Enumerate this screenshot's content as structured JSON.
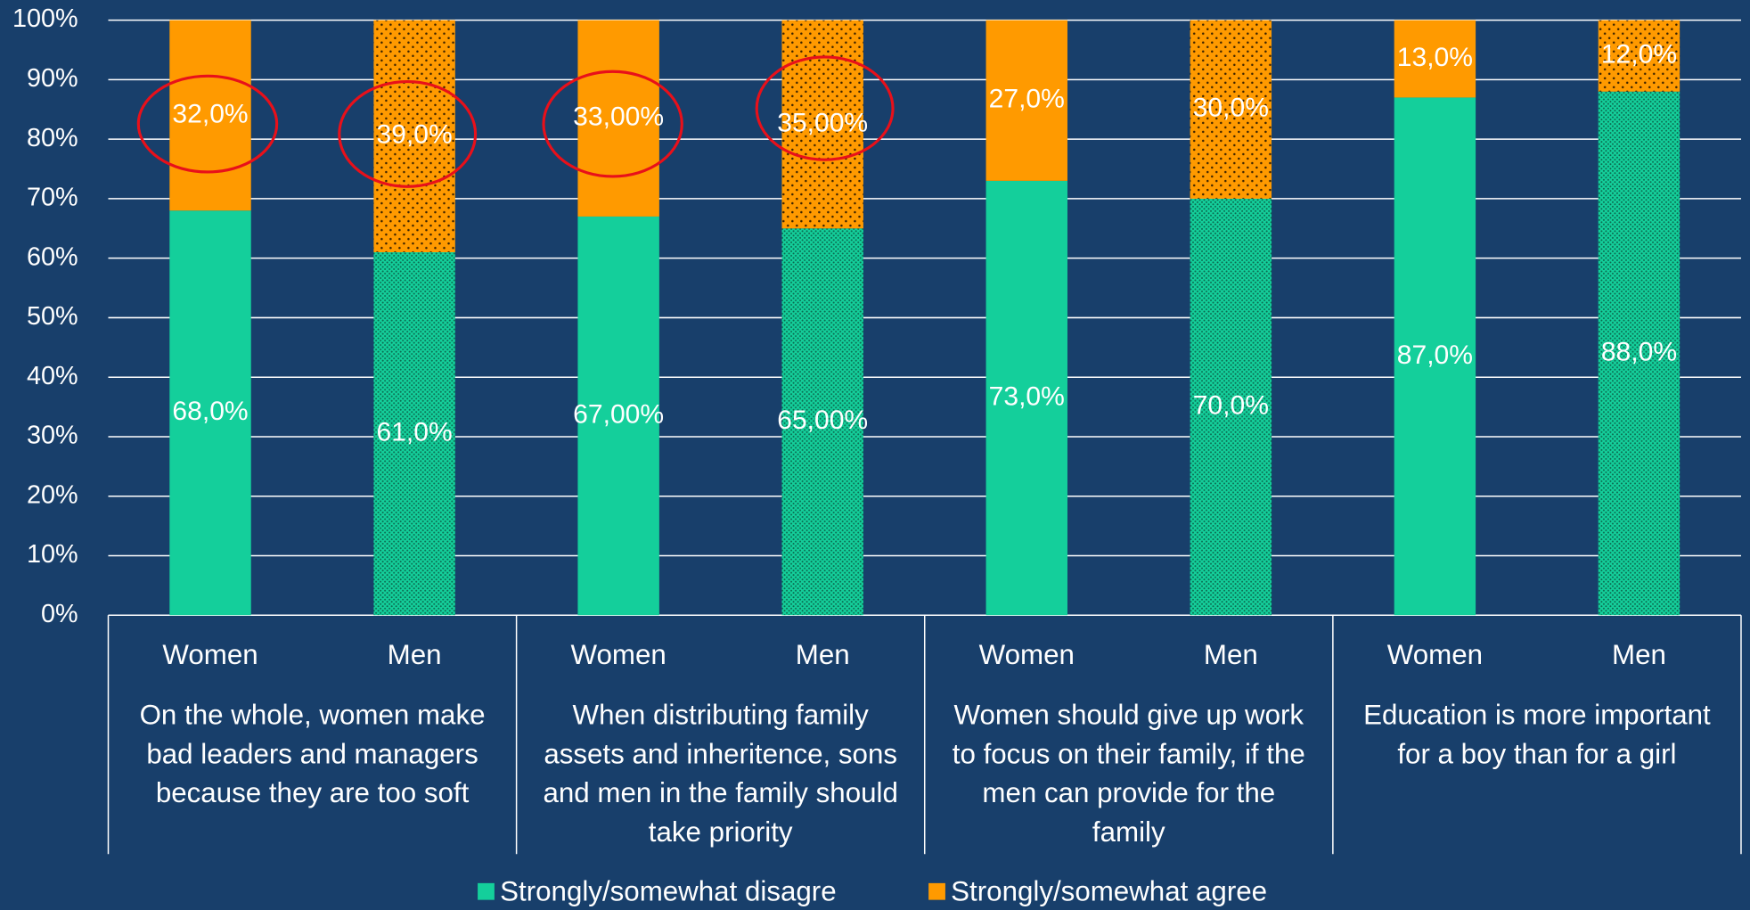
{
  "chart_data": {
    "type": "stacked_bar",
    "groups": [
      {
        "lines": [
          "On the whole, women make",
          "bad leaders and managers",
          "because they are too soft"
        ],
        "categories": [
          "Women",
          "Men"
        ]
      },
      {
        "lines": [
          "When distributing family",
          "assets and inheritence, sons",
          "and men in the family should",
          "take priority"
        ],
        "categories": [
          "Women",
          "Men"
        ]
      },
      {
        "lines": [
          "Women should give up work",
          "to focus on their family, if the",
          "men can provide for the",
          "family"
        ],
        "categories": [
          "Women",
          "Men"
        ]
      },
      {
        "lines": [
          "Education is more important",
          "for a boy than for a girl"
        ],
        "categories": [
          "Women",
          "Men"
        ]
      }
    ],
    "series": [
      {
        "name": "Strongly/somewhat disagre",
        "color": "#14cf9b",
        "values": [
          68,
          61,
          67,
          65,
          73,
          70,
          87,
          88
        ],
        "value_labels": [
          "68,0%",
          "61,0%",
          "67,00%",
          "65,00%",
          "73,0%",
          "70,0%",
          "87,0%",
          "88,0%"
        ]
      },
      {
        "name": "Strongly/somewhat agree",
        "color": "#ff9a00",
        "values": [
          32,
          39,
          33,
          35,
          27,
          30,
          13,
          12
        ],
        "value_labels": [
          "32,0%",
          "39,0%",
          "33,00%",
          "35,00%",
          "27,0%",
          "30,0%",
          "13,0%",
          "12,0%"
        ]
      }
    ],
    "ylim": [
      0,
      100
    ],
    "yticks": [
      {
        "value": 0,
        "label": "0%"
      },
      {
        "value": 10,
        "label": "10%"
      },
      {
        "value": 20,
        "label": "20%"
      },
      {
        "value": 30,
        "label": "30%"
      },
      {
        "value": 40,
        "label": "40%"
      },
      {
        "value": 50,
        "label": "50%"
      },
      {
        "value": 60,
        "label": "60%"
      },
      {
        "value": 70,
        "label": "70%"
      },
      {
        "value": 80,
        "label": "80%"
      },
      {
        "value": 90,
        "label": "90%"
      },
      {
        "value": 100,
        "label": "100%"
      }
    ],
    "grid": true,
    "legend": "bottom"
  }
}
